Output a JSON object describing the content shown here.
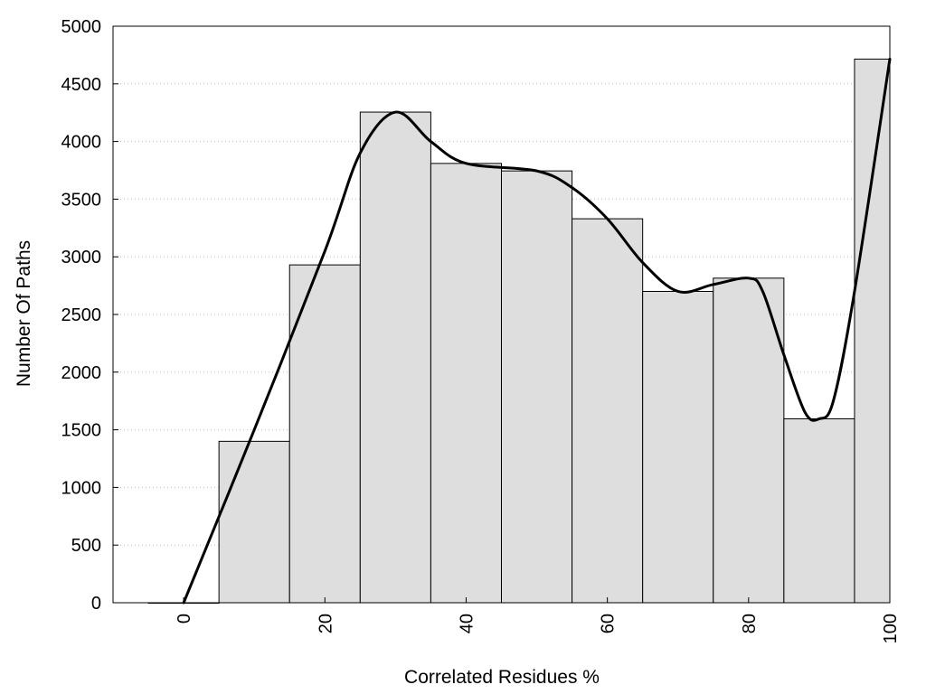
{
  "chart_data": {
    "type": "bar",
    "xlabel": "Correlated Residues %",
    "ylabel": "Number Of Paths",
    "xlim": [
      -10,
      100
    ],
    "ylim": [
      0,
      5000
    ],
    "grid": "horizontal dotted",
    "bin_width": 10,
    "bins": [
      {
        "x": 0,
        "value": 0
      },
      {
        "x": 10,
        "value": 1400
      },
      {
        "x": 20,
        "value": 2930
      },
      {
        "x": 30,
        "value": 4255
      },
      {
        "x": 40,
        "value": 3810
      },
      {
        "x": 50,
        "value": 3745
      },
      {
        "x": 60,
        "value": 3330
      },
      {
        "x": 70,
        "value": 2700
      },
      {
        "x": 80,
        "value": 2815
      },
      {
        "x": 90,
        "value": 1595
      },
      {
        "x": 100,
        "value": 4715
      }
    ],
    "x_ticks": [
      0,
      20,
      40,
      60,
      80,
      100
    ],
    "y_ticks": [
      0,
      500,
      1000,
      1500,
      2000,
      2500,
      3000,
      3500,
      4000,
      4500,
      5000
    ],
    "x_tick_labels": [
      "0",
      "20",
      "40",
      "60",
      "80",
      "100"
    ],
    "y_tick_labels": [
      "0",
      "500",
      "1000",
      "1500",
      "2000",
      "2500",
      "3000",
      "3500",
      "4000",
      "4500",
      "5000"
    ],
    "curve": {
      "type": "smooth line",
      "x": [
        0,
        10,
        20,
        25,
        30,
        35,
        40,
        50,
        55,
        60,
        65,
        70,
        75,
        80,
        82,
        85,
        88,
        90,
        92,
        95,
        100
      ],
      "y": [
        0,
        1500,
        3050,
        3900,
        4255,
        4000,
        3810,
        3745,
        3600,
        3330,
        2950,
        2700,
        2760,
        2815,
        2700,
        2150,
        1650,
        1595,
        1750,
        2700,
        4715
      ]
    },
    "bar_color": "#dedede",
    "line_color": "#000000"
  }
}
